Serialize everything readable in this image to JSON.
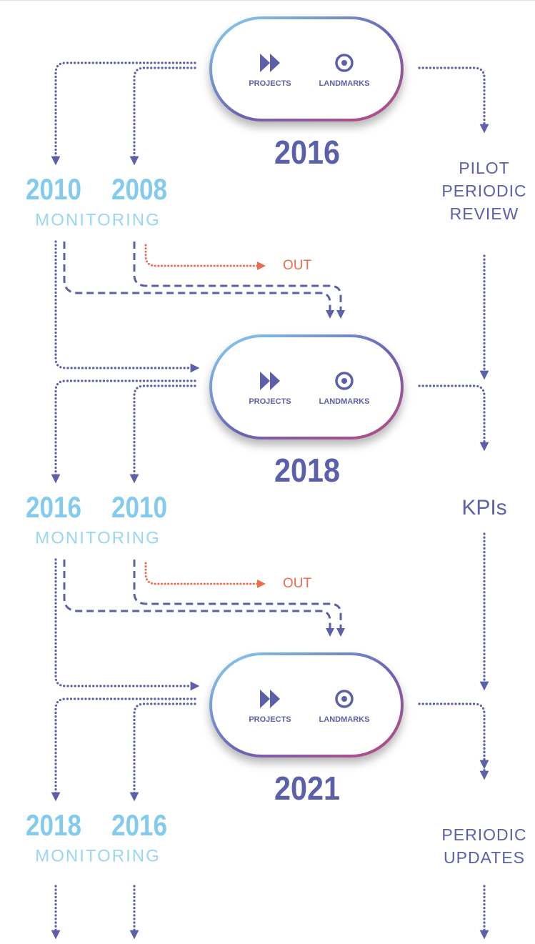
{
  "stages": [
    {
      "projects": "PROJECTS",
      "landmarks": "LANDMARKS",
      "year": "2016",
      "monitoring": {
        "years": [
          "2010",
          "2008"
        ],
        "label": "MONITORING"
      },
      "out": "OUT",
      "review": [
        "PILOT",
        "PERIODIC",
        "REVIEW"
      ]
    },
    {
      "projects": "PROJECTS",
      "landmarks": "LANDMARKS",
      "year": "2018",
      "monitoring": {
        "years": [
          "2016",
          "2010"
        ],
        "label": "MONITORING"
      },
      "out": "OUT",
      "review": [
        "KPIs"
      ]
    },
    {
      "projects": "PROJECTS",
      "landmarks": "LANDMARKS",
      "year": "2021",
      "monitoring": {
        "years": [
          "2018",
          "2016"
        ],
        "label": "MONITORING"
      },
      "review": [
        "PERIODIC",
        "UPDATES"
      ]
    }
  ]
}
